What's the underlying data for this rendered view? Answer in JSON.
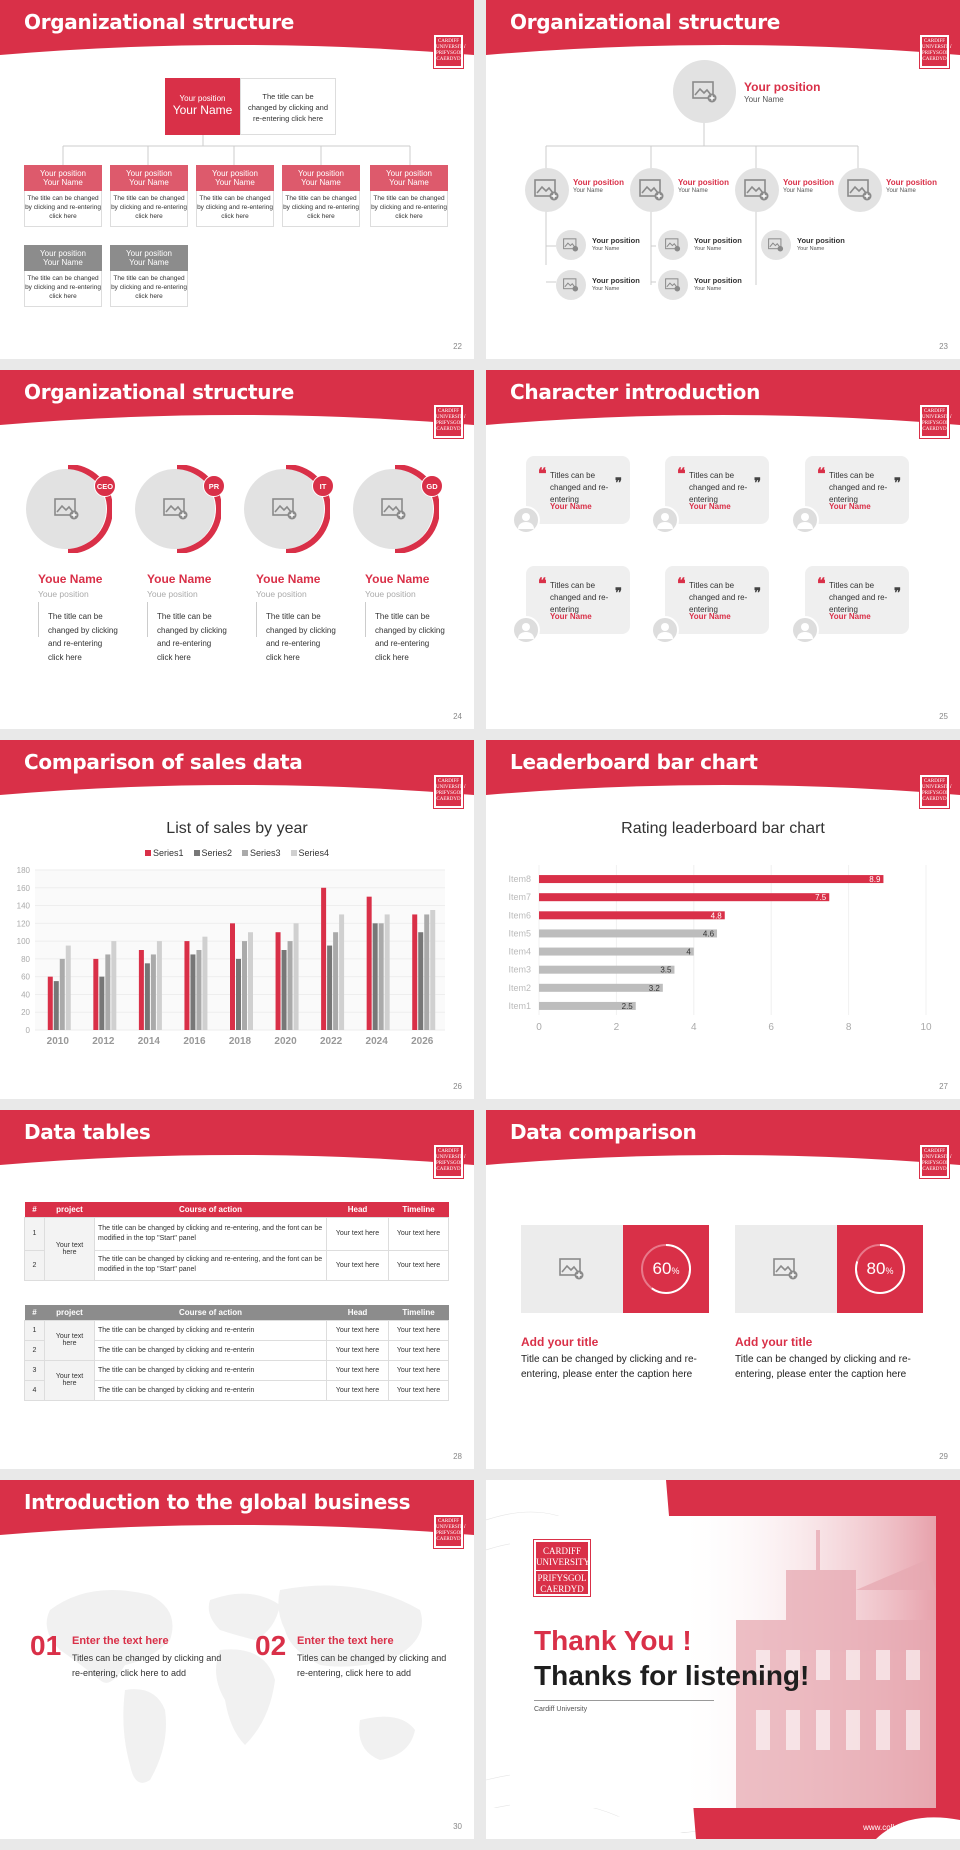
{
  "brand": {
    "primary": "#d93048",
    "light": "#dd5a6c",
    "gray": "#8c8c8c",
    "logo_lines": [
      "CARDIFF",
      "UNIVERSITY",
      "PRIFYSGOL",
      "CAERDYD"
    ]
  },
  "slides": {
    "s22": {
      "title": "Organizational structure",
      "top_box": {
        "position": "Your position",
        "name": "Your Name",
        "desc": "The title can be changed by clicking and re-entering click here"
      },
      "row1": [
        {
          "position": "Your position",
          "name": "Your Name",
          "desc": "The title can be changed by clicking and re-entering click here"
        },
        {
          "position": "Your position",
          "name": "Your Name",
          "desc": "The title can be changed by clicking and re-entering click here"
        },
        {
          "position": "Your position",
          "name": "Your Name",
          "desc": "The title can be changed by clicking and re-entering click here"
        },
        {
          "position": "Your position",
          "name": "Your Name",
          "desc": "The title can be changed by clicking and re-entering click here"
        },
        {
          "position": "Your position",
          "name": "Your Name",
          "desc": "The title can be changed by clicking and re-entering click here"
        }
      ],
      "row2": [
        {
          "position": "Your position",
          "name": "Your Name",
          "desc": "The title can be changed by clicking and re-entering click here"
        },
        {
          "position": "Your position",
          "name": "Your Name",
          "desc": "The title can be changed by clicking and re-entering click here"
        }
      ],
      "page": "22"
    },
    "s23": {
      "title": "Organizational structure",
      "top": {
        "position": "Your position",
        "name": "Your Name"
      },
      "mid": [
        {
          "position": "Your position",
          "name": "Your Name"
        },
        {
          "position": "Your position",
          "name": "Your Name"
        },
        {
          "position": "Your position",
          "name": "Your Name"
        },
        {
          "position": "Your position",
          "name": "Your Name"
        }
      ],
      "sub": [
        {
          "position": "Your position",
          "name": "Your Name"
        },
        {
          "position": "Your position",
          "name": "Your Name"
        },
        {
          "position": "Your position",
          "name": "Your Name"
        },
        {
          "position": "Your position",
          "name": "Your Name"
        },
        {
          "position": "Your position",
          "name": "Your Name"
        }
      ],
      "page": "23"
    },
    "s24": {
      "title": "Organizational structure",
      "people": [
        {
          "badge": "CEO",
          "name": "Youe Name",
          "position": "Youe position",
          "desc": "The title can be changed by clicking and re-entering click here"
        },
        {
          "badge": "PR",
          "name": "Youe Name",
          "position": "Youe position",
          "desc": "The title can be changed by clicking and re-entering click here"
        },
        {
          "badge": "IT",
          "name": "Youe Name",
          "position": "Youe position",
          "desc": "The title can be changed by clicking and re-entering click here"
        },
        {
          "badge": "GD",
          "name": "Youe Name",
          "position": "Youe position",
          "desc": "The title can be changed by clicking and re-entering click here"
        }
      ],
      "page": "24"
    },
    "s25": {
      "title": "Character introduction",
      "cards": [
        {
          "text": "Titles can be changed and re-entering",
          "name": "Your Name"
        },
        {
          "text": "Titles can be changed and re-entering",
          "name": "Your Name"
        },
        {
          "text": "Titles can be changed and re-entering",
          "name": "Your Name"
        },
        {
          "text": "Titles can be changed and re-entering",
          "name": "Your Name"
        },
        {
          "text": "Titles can be changed and re-entering",
          "name": "Your Name"
        },
        {
          "text": "Titles can be changed and re-entering",
          "name": "Your Name"
        }
      ],
      "page": "25"
    },
    "s26": {
      "title": "Comparison of sales data",
      "page": "26"
    },
    "s27": {
      "title": "Leaderboard bar chart",
      "page": "27"
    },
    "s28": {
      "title": "Data tables",
      "headers": [
        "#",
        "project",
        "Course of action",
        "Head",
        "Timeline"
      ],
      "table1": {
        "project": "Your text here",
        "rows": [
          {
            "n": "1",
            "action": "The title can be changed by clicking and re-entering, and the font can be modified in the top \"Start\" panel",
            "head": "Your text here",
            "time": "Your text here"
          },
          {
            "n": "2",
            "action": "The title can be changed by clicking and re-entering, and the font can be modified in the top \"Start\" panel",
            "head": "Your text here",
            "time": "Your text here"
          }
        ]
      },
      "table2": {
        "projects": [
          "Your text here",
          "Your text here"
        ],
        "rows": [
          {
            "n": "1",
            "action": "The title can be changed by clicking and re-enterin",
            "head": "Your text here",
            "time": "Your text here"
          },
          {
            "n": "2",
            "action": "The title can be changed by clicking and re-enterin",
            "head": "Your text here",
            "time": "Your text here"
          },
          {
            "n": "3",
            "action": "The title can be changed by clicking and re-enterin",
            "head": "Your text here",
            "time": "Your text here"
          },
          {
            "n": "4",
            "action": "The title can be changed by clicking and re-enterin",
            "head": "Your text here",
            "time": "Your text here"
          }
        ]
      },
      "page": "28"
    },
    "s29": {
      "title": "Data comparison",
      "items": [
        {
          "value": "60",
          "unit": "%",
          "fraction": 0.6,
          "heading": "Add your title",
          "desc": "Title can be changed by clicking and re-entering, please enter the caption here"
        },
        {
          "value": "80",
          "unit": "%",
          "fraction": 0.8,
          "heading": "Add your title",
          "desc": "Title can be changed by clicking and re-entering, please enter the caption here"
        }
      ],
      "page": "29"
    },
    "s30": {
      "title": "Introduction to the global business",
      "items": [
        {
          "num": "01",
          "heading": "Enter the text here",
          "desc": "Titles can be changed by clicking and re-entering, click here to add"
        },
        {
          "num": "02",
          "heading": "Enter the text here",
          "desc": "Titles can be changed by clicking and re-entering, click here to add"
        }
      ],
      "page": "30"
    },
    "s31": {
      "thank": "Thank You !",
      "thanks2": "Thanks for listening!",
      "org": "Cardiff University",
      "site": "www.collegeppt.com"
    }
  },
  "chart_data": [
    {
      "type": "bar",
      "title": "List of sales by year",
      "categories": [
        "2010",
        "2012",
        "2014",
        "2016",
        "2018",
        "2020",
        "2022",
        "2024",
        "2026"
      ],
      "series": [
        {
          "name": "Series1",
          "color": "#d93048",
          "values": [
            60,
            80,
            90,
            100,
            120,
            110,
            160,
            150,
            130
          ]
        },
        {
          "name": "Series2",
          "color": "#777777",
          "values": [
            55,
            60,
            75,
            85,
            80,
            90,
            95,
            120,
            110
          ]
        },
        {
          "name": "Series3",
          "color": "#aaaaaa",
          "values": [
            80,
            85,
            85,
            90,
            100,
            100,
            110,
            120,
            130
          ]
        },
        {
          "name": "Series4",
          "color": "#d0d0d0",
          "values": [
            95,
            100,
            100,
            105,
            110,
            120,
            130,
            130,
            135
          ]
        }
      ],
      "ylim": [
        0,
        180
      ],
      "yticks": [
        0,
        20,
        40,
        60,
        80,
        100,
        120,
        140,
        160,
        180
      ],
      "legend": "top"
    },
    {
      "type": "bar",
      "orientation": "horizontal",
      "title": "Rating leaderboard bar chart",
      "categories": [
        "Item8",
        "Item7",
        "Item6",
        "Item5",
        "Item4",
        "Item3",
        "Item2",
        "Item1"
      ],
      "values": [
        8.9,
        7.5,
        4.8,
        4.6,
        4,
        3.5,
        3.2,
        2.5
      ],
      "labels": [
        "8.9",
        "7.5",
        "4.8",
        "4.6",
        "4",
        "3.5",
        "3.2",
        "2.5"
      ],
      "highlight_color": "#d93048",
      "other_color": "#bdbdbd",
      "xlim": [
        0,
        10
      ],
      "xticks": [
        0,
        2,
        4,
        6,
        8,
        10
      ]
    }
  ]
}
